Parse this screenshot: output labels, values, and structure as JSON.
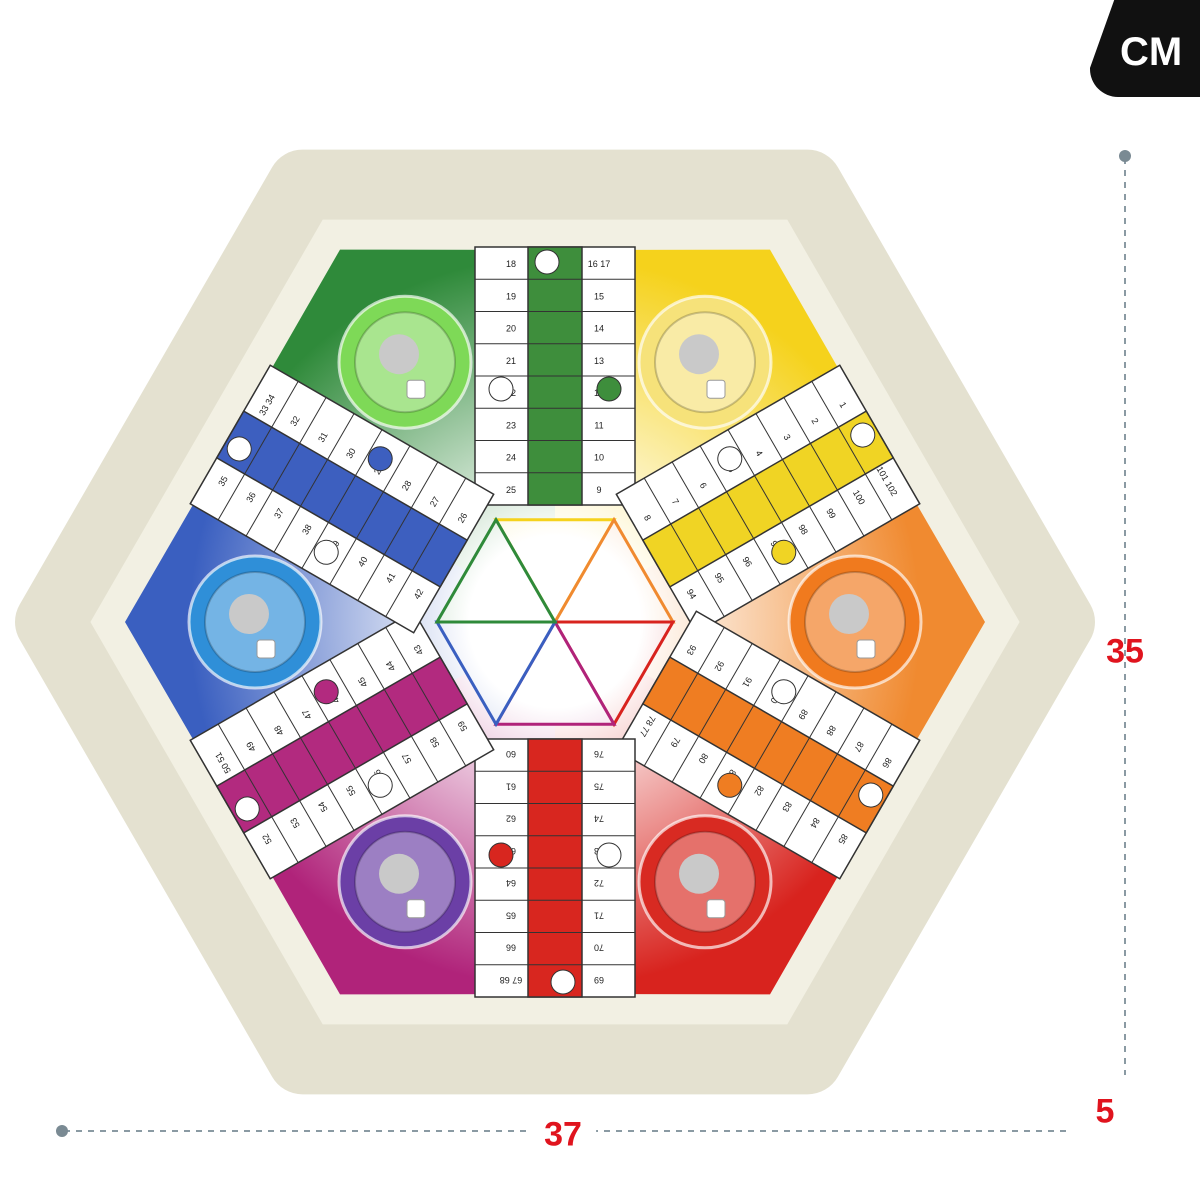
{
  "badge": {
    "unit": "CM"
  },
  "dimensions": {
    "height": "35",
    "width": "37",
    "depth": "5"
  },
  "colors": {
    "frame": "#f2f0e3",
    "label_red": "#e0141e",
    "green": "#3a8a3a",
    "yellow": "#f2d21e",
    "orange": "#f07a1e",
    "red": "#d9231e",
    "magenta": "#b0237a",
    "blue": "#3a5fc0",
    "purple": "#6a3aa0"
  },
  "board": {
    "arms": [
      {
        "color": "#3e8e3c",
        "left": [
          "18",
          "19",
          "20",
          "21",
          "22",
          "23",
          "24",
          "25"
        ],
        "right": [
          "16 17",
          "15",
          "14",
          "13",
          "12",
          "11",
          "10",
          "9"
        ]
      },
      {
        "color": "#f0d424",
        "left": [
          "1",
          "2",
          "3",
          "4",
          "5",
          "6",
          "7",
          "8"
        ],
        "right": [
          "101 102",
          "100",
          "99",
          "98",
          "97",
          "96",
          "95",
          "94"
        ]
      },
      {
        "color": "#ef7d22",
        "left": [
          "86",
          "87",
          "88",
          "89",
          "90",
          "91",
          "92",
          "93"
        ],
        "right": [
          "85",
          "84",
          "83",
          "82",
          "81",
          "80",
          "79",
          "78 77"
        ]
      },
      {
        "color": "#d8261f",
        "left": [
          "69",
          "70",
          "71",
          "72",
          "73",
          "74",
          "75",
          "76"
        ],
        "right": [
          "67 68",
          "66",
          "65",
          "64",
          "63",
          "62",
          "61",
          "60"
        ]
      },
      {
        "color": "#b22a7f",
        "left": [
          "52",
          "53",
          "54",
          "55",
          "56",
          "57",
          "58",
          "59"
        ],
        "right": [
          "50 51",
          "49",
          "48",
          "47",
          "46",
          "45",
          "44",
          "43"
        ]
      },
      {
        "color": "#3d5fbf",
        "left": [
          "35",
          "36",
          "37",
          "38",
          "39",
          "40",
          "41",
          "42"
        ],
        "right": [
          "33 34",
          "32",
          "31",
          "30",
          "29",
          "28",
          "27",
          "26"
        ]
      }
    ],
    "homes": [
      {
        "name": "green",
        "ring": "#7ed957",
        "sector": "#2f8a3a"
      },
      {
        "name": "yellow",
        "ring": "#f6e27a",
        "sector": "#f5d21c"
      },
      {
        "name": "orange",
        "ring": "#f07a1e",
        "sector": "#f08a30"
      },
      {
        "name": "red",
        "ring": "#d82a22",
        "sector": "#d8231e"
      },
      {
        "name": "purple",
        "ring": "#6b3fa6",
        "sector": "#b0237a"
      },
      {
        "name": "blue",
        "ring": "#2f8fd8",
        "sector": "#3a5fc0"
      }
    ]
  }
}
